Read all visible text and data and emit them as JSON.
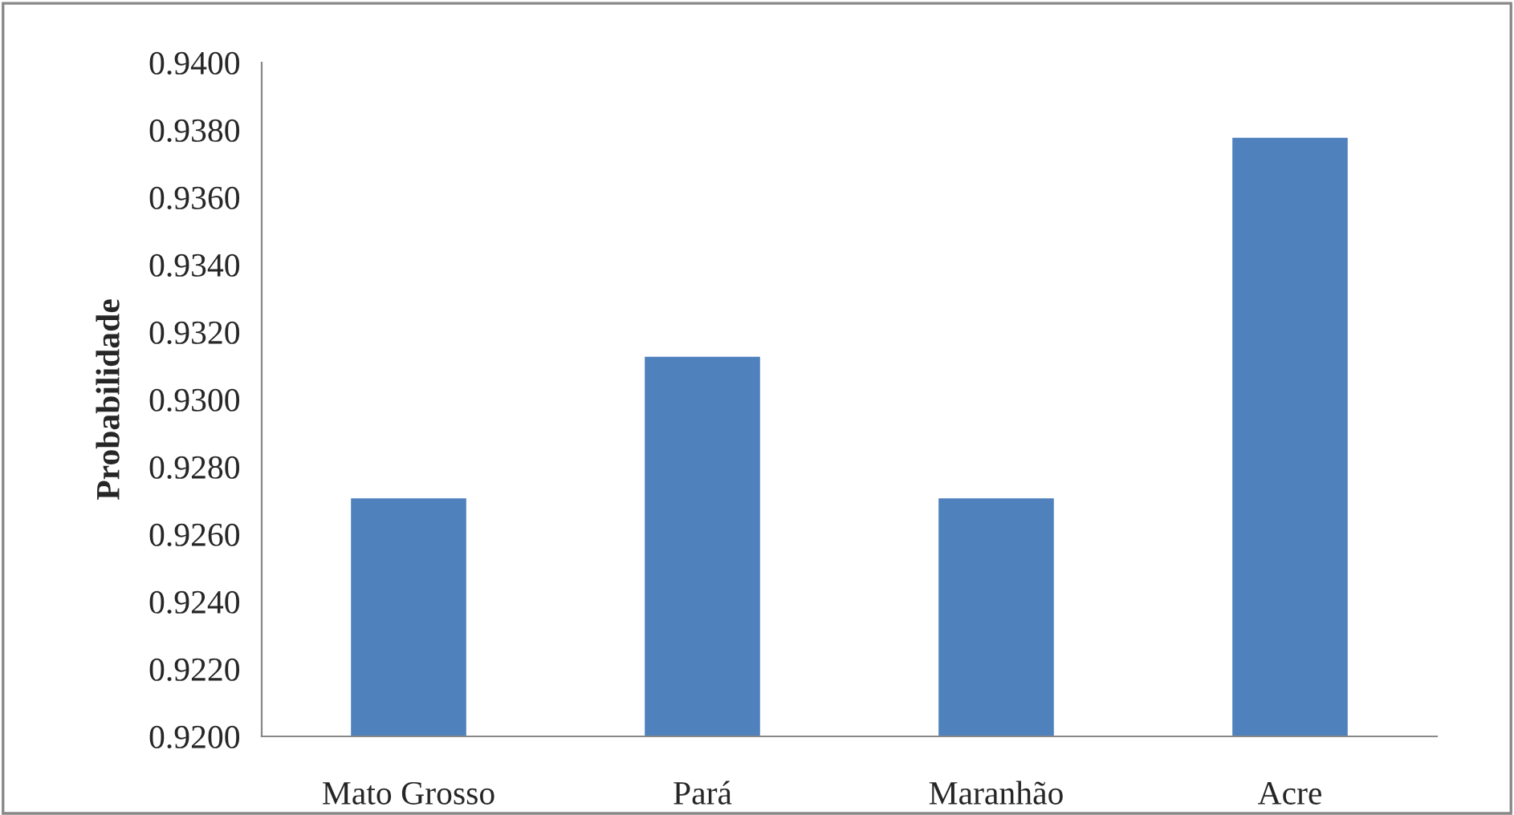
{
  "chart_data": {
    "type": "bar",
    "ylabel": "Probabilidade",
    "categories": [
      "Mato Grosso",
      "Pará",
      "Maranhão",
      "Acre"
    ],
    "values": [
      0.9271,
      0.9313,
      0.9271,
      0.9378
    ],
    "color": "#4f81bd",
    "ylim": [
      0.92,
      0.94
    ],
    "yticks": [
      {
        "value": 0.92,
        "label": "0.9200"
      },
      {
        "value": 0.922,
        "label": "0.9220"
      },
      {
        "value": 0.924,
        "label": "0.9240"
      },
      {
        "value": 0.926,
        "label": "0.9260"
      },
      {
        "value": 0.928,
        "label": "0.9280"
      },
      {
        "value": 0.93,
        "label": "0.9300"
      },
      {
        "value": 0.932,
        "label": "0.9320"
      },
      {
        "value": 0.934,
        "label": "0.9340"
      },
      {
        "value": 0.936,
        "label": "0.9360"
      },
      {
        "value": 0.938,
        "label": "0.9380"
      },
      {
        "value": 0.94,
        "label": "0.9400"
      }
    ],
    "grid": false,
    "legend": false
  }
}
